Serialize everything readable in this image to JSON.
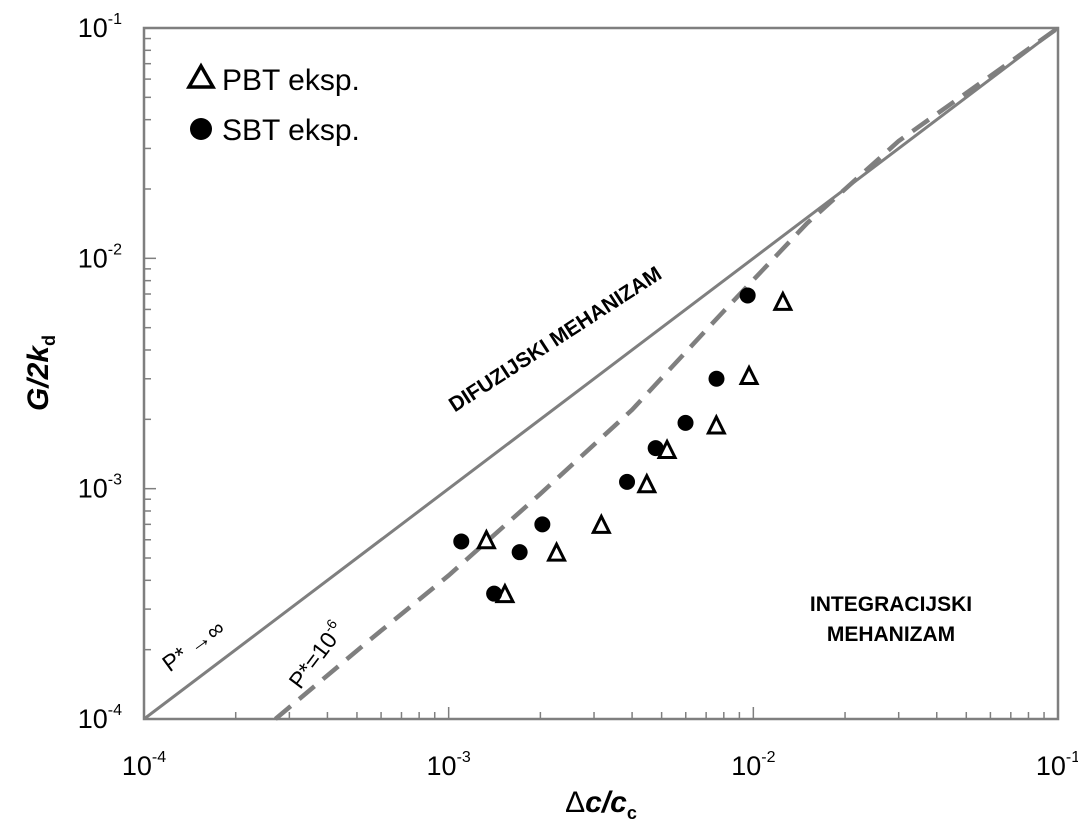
{
  "chart_data": {
    "type": "scatter",
    "title": "",
    "x_scale": "log",
    "y_scale": "log",
    "xlim": [
      0.0001,
      0.1
    ],
    "ylim": [
      0.0001,
      0.1
    ],
    "grid": false,
    "legend_position": "top-left",
    "xlabel": {
      "pre": "Δ",
      "main": "c/c",
      "sub": "c"
    },
    "ylabel": {
      "main": "G/2k",
      "sub": "d"
    },
    "x_ticks": [
      {
        "value": 0.0001,
        "base": "10",
        "exp": "-4"
      },
      {
        "value": 0.001,
        "base": "10",
        "exp": "-3"
      },
      {
        "value": 0.01,
        "base": "10",
        "exp": "-2"
      },
      {
        "value": 0.1,
        "base": "10",
        "exp": "-1"
      }
    ],
    "y_ticks": [
      {
        "value": 0.0001,
        "base": "10",
        "exp": "-4"
      },
      {
        "value": 0.001,
        "base": "10",
        "exp": "-3"
      },
      {
        "value": 0.01,
        "base": "10",
        "exp": "-2"
      },
      {
        "value": 0.1,
        "base": "10",
        "exp": "-1"
      }
    ],
    "series": [
      {
        "name": "PBT eksp.",
        "marker": "open-triangle",
        "color": "#000000",
        "points": [
          {
            "x": 0.00133,
            "y": 0.0006
          },
          {
            "x": 0.00153,
            "y": 0.00035
          },
          {
            "x": 0.00226,
            "y": 0.00053
          },
          {
            "x": 0.00317,
            "y": 0.0007
          },
          {
            "x": 0.00447,
            "y": 0.00105
          },
          {
            "x": 0.00521,
            "y": 0.00148
          },
          {
            "x": 0.00756,
            "y": 0.00189
          },
          {
            "x": 0.00968,
            "y": 0.0031
          },
          {
            "x": 0.0125,
            "y": 0.0065
          }
        ]
      },
      {
        "name": "SBT eksp.",
        "marker": "filled-circle",
        "color": "#000000",
        "points": [
          {
            "x": 0.0011,
            "y": 0.00059
          },
          {
            "x": 0.00141,
            "y": 0.00035
          },
          {
            "x": 0.00171,
            "y": 0.00053
          },
          {
            "x": 0.00203,
            "y": 0.0007
          },
          {
            "x": 0.00385,
            "y": 0.00107
          },
          {
            "x": 0.00478,
            "y": 0.0015
          },
          {
            "x": 0.00599,
            "y": 0.00193
          },
          {
            "x": 0.00757,
            "y": 0.003
          },
          {
            "x": 0.00958,
            "y": 0.0069
          }
        ]
      }
    ],
    "lines": [
      {
        "id": "p-infinity",
        "style": "solid",
        "color": "#7f7f7f",
        "points": [
          [
            0.0001,
            0.0001
          ],
          [
            0.1,
            0.1
          ]
        ]
      },
      {
        "id": "p-1e-6",
        "style": "dashed",
        "color": "#7f7f7f",
        "points": [
          [
            0.00027,
            0.0001
          ],
          [
            0.00055,
            0.00022
          ],
          [
            0.001,
            0.00042
          ],
          [
            0.002,
            0.00095
          ],
          [
            0.004,
            0.0022
          ],
          [
            0.008,
            0.0059
          ],
          [
            0.015,
            0.0142
          ],
          [
            0.03,
            0.0323
          ],
          [
            0.1,
            0.1
          ]
        ]
      }
    ],
    "annotations": {
      "diffusion": "DIFUZIJSKI MEHANIZAM",
      "integration_line1": "INTEGRACIJSKI",
      "integration_line2": "MEHANIZAM",
      "p_inf": "P* →∞",
      "p_dash_base": "P*=10",
      "p_dash_exp": "-6"
    }
  }
}
